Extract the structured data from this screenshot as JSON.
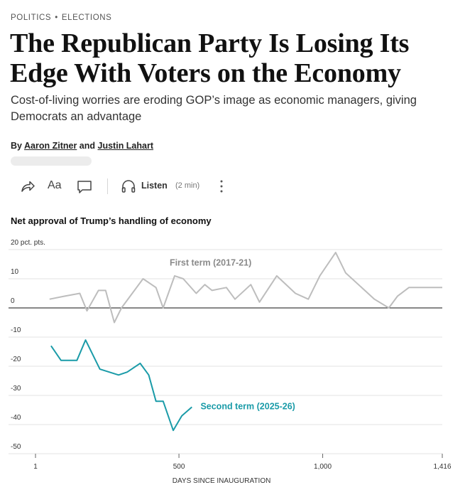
{
  "breadcrumb": {
    "section": "POLITICS",
    "separator": "•",
    "subsection": "ELECTIONS"
  },
  "headline": "The Republican Party Is Losing Its Edge With Voters on the Economy",
  "dek": "Cost-of-living worries are eroding GOP’s image as economic managers, giving Democrats an advantage",
  "byline": {
    "prefix": "By",
    "author1": "Aaron Zitner",
    "conjunction": "and",
    "author2": "Justin Lahart"
  },
  "toolbar": {
    "icons": [
      "share-icon",
      "text-size-icon",
      "comment-icon",
      "headphones-icon",
      "more-options-icon"
    ],
    "text_size_label": "Aa",
    "listen_label": "Listen",
    "listen_duration": "(2 min)"
  },
  "colors": {
    "first_term": "#bdbdbd",
    "second_term": "#1a9ba8",
    "first_term_label": "#8a8a8a"
  },
  "chart_data": {
    "type": "line",
    "title": "Net approval of Trump’s handling of economy",
    "xlabel": "DAYS SINCE INAUGURATION",
    "ylabel": "",
    "xlim": [
      1,
      1416
    ],
    "ylim": [
      -50,
      20
    ],
    "x_ticks": [
      {
        "value": 1,
        "label": "1"
      },
      {
        "value": 500,
        "label": "500"
      },
      {
        "value": 1000,
        "label": "1,000"
      },
      {
        "value": 1416,
        "label": "1,416"
      }
    ],
    "y_ticks": [
      {
        "value": 20,
        "label": "20 pct. pts."
      },
      {
        "value": 10,
        "label": "10"
      },
      {
        "value": 0,
        "label": "0"
      },
      {
        "value": -10,
        "label": "-10"
      },
      {
        "value": -20,
        "label": "-20"
      },
      {
        "value": -30,
        "label": "-30"
      },
      {
        "value": -40,
        "label": "-40"
      },
      {
        "value": -50,
        "label": "-50"
      }
    ],
    "grid": true,
    "series": [
      {
        "name": "First term (2017-21)",
        "x": [
          50,
          100,
          155,
          180,
          220,
          245,
          275,
          300,
          375,
          420,
          445,
          485,
          515,
          560,
          590,
          615,
          665,
          695,
          750,
          780,
          840,
          905,
          950,
          990,
          1045,
          1080,
          1180,
          1230,
          1260,
          1300,
          1416
        ],
        "values": [
          3,
          4,
          5,
          -1,
          6,
          6,
          -5,
          0,
          10,
          7,
          0,
          11,
          10,
          5,
          8,
          6,
          7,
          3,
          8,
          2,
          11,
          5,
          3,
          11,
          19,
          12,
          3,
          0,
          4,
          7,
          7
        ]
      },
      {
        "name": "Second term (2025-26)",
        "x": [
          55,
          90,
          145,
          175,
          225,
          290,
          320,
          365,
          395,
          420,
          445,
          480,
          510,
          545
        ],
        "values": [
          -13,
          -18,
          -18,
          -11,
          -21,
          -23,
          -22,
          -19,
          -23,
          -32,
          -32,
          -42,
          -37,
          -34
        ]
      }
    ]
  }
}
